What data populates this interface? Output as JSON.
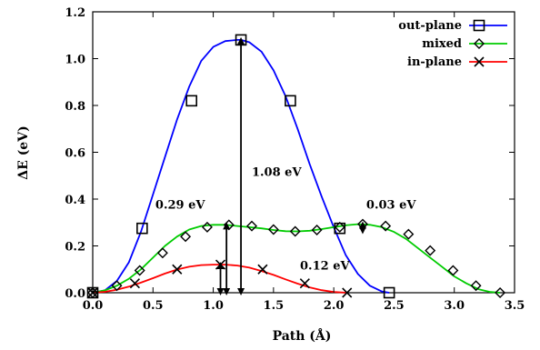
{
  "chart_data": {
    "type": "line",
    "xlabel": "Path (Å)",
    "ylabel": "ΔE (eV)",
    "xlim": [
      0.0,
      3.5
    ],
    "ylim": [
      0.0,
      1.2
    ],
    "xticks": [
      0.0,
      0.5,
      1.0,
      1.5,
      2.0,
      2.5,
      3.0,
      3.5
    ],
    "xtick_labels": [
      "0.0",
      "0.5",
      "1.0",
      "1.5",
      "2.0",
      "2.5",
      "3.0",
      "3.5"
    ],
    "yticks": [
      0.0,
      0.2,
      0.4,
      0.6,
      0.8,
      1.0,
      1.2
    ],
    "ytick_labels": [
      "0.0",
      "0.2",
      "0.4",
      "0.6",
      "0.8",
      "1.0",
      "1.2"
    ],
    "grid": false,
    "legend_position": "top-right",
    "series": [
      {
        "name": "out-plane",
        "color": "#0000ff",
        "marker": "square",
        "curve": {
          "x": [
            0.0,
            0.1,
            0.2,
            0.3,
            0.4,
            0.5,
            0.6,
            0.7,
            0.8,
            0.9,
            1.0,
            1.1,
            1.2,
            1.23,
            1.3,
            1.4,
            1.5,
            1.6,
            1.7,
            1.8,
            1.9,
            2.0,
            2.1,
            2.2,
            2.3,
            2.4,
            2.46
          ],
          "y": [
            0.0,
            0.01,
            0.05,
            0.13,
            0.26,
            0.42,
            0.58,
            0.74,
            0.88,
            0.99,
            1.05,
            1.075,
            1.08,
            1.08,
            1.07,
            1.03,
            0.95,
            0.84,
            0.7,
            0.55,
            0.41,
            0.28,
            0.16,
            0.08,
            0.03,
            0.005,
            0.0
          ]
        },
        "markers": {
          "x": [
            0.0,
            0.41,
            0.82,
            1.23,
            1.64,
            2.05,
            2.46
          ],
          "y": [
            0.0,
            0.275,
            0.82,
            1.08,
            0.82,
            0.275,
            0.0
          ]
        }
      },
      {
        "name": "mixed",
        "color": "#00cc00",
        "marker": "diamond",
        "curve": {
          "x": [
            0.0,
            0.1,
            0.2,
            0.3,
            0.4,
            0.5,
            0.6,
            0.7,
            0.8,
            0.9,
            1.0,
            1.1,
            1.2,
            1.3,
            1.4,
            1.5,
            1.6,
            1.7,
            1.8,
            1.9,
            2.0,
            2.1,
            2.2,
            2.3,
            2.4,
            2.5,
            2.6,
            2.7,
            2.8,
            2.9,
            3.0,
            3.1,
            3.2,
            3.3,
            3.38
          ],
          "y": [
            0.0,
            0.01,
            0.03,
            0.06,
            0.1,
            0.15,
            0.2,
            0.24,
            0.27,
            0.285,
            0.29,
            0.29,
            0.285,
            0.28,
            0.275,
            0.268,
            0.263,
            0.262,
            0.265,
            0.272,
            0.28,
            0.288,
            0.293,
            0.29,
            0.28,
            0.26,
            0.23,
            0.19,
            0.15,
            0.11,
            0.07,
            0.04,
            0.015,
            0.003,
            0.0
          ]
        },
        "markers": {
          "x": [
            0.0,
            0.2,
            0.39,
            0.58,
            0.77,
            0.95,
            1.13,
            1.32,
            1.5,
            1.68,
            1.86,
            2.05,
            2.24,
            2.43,
            2.62,
            2.8,
            2.99,
            3.18,
            3.38
          ],
          "y": [
            0.0,
            0.03,
            0.095,
            0.17,
            0.24,
            0.28,
            0.29,
            0.285,
            0.27,
            0.262,
            0.268,
            0.28,
            0.293,
            0.285,
            0.25,
            0.18,
            0.095,
            0.03,
            0.0
          ]
        }
      },
      {
        "name": "in-plane",
        "color": "#ff0000",
        "marker": "cross",
        "curve": {
          "x": [
            0.0,
            0.1,
            0.2,
            0.3,
            0.4,
            0.5,
            0.6,
            0.7,
            0.8,
            0.9,
            1.0,
            1.06,
            1.1,
            1.2,
            1.3,
            1.4,
            1.5,
            1.6,
            1.7,
            1.8,
            1.9,
            2.0,
            2.11
          ],
          "y": [
            0.0,
            0.004,
            0.013,
            0.026,
            0.043,
            0.062,
            0.082,
            0.099,
            0.111,
            0.118,
            0.12,
            0.12,
            0.12,
            0.116,
            0.107,
            0.093,
            0.076,
            0.057,
            0.039,
            0.023,
            0.011,
            0.003,
            0.0
          ]
        },
        "markers": {
          "x": [
            0.0,
            0.35,
            0.7,
            1.06,
            1.41,
            1.76,
            2.11
          ],
          "y": [
            0.0,
            0.04,
            0.1,
            0.12,
            0.1,
            0.04,
            0.0
          ]
        }
      }
    ],
    "annotations": [
      {
        "text": "1.08 eV",
        "x": 1.32,
        "y": 0.5,
        "arrow_x": 1.23,
        "arrow_y": [
          0.0,
          1.08
        ],
        "color": "#000000"
      },
      {
        "text": "0.29 eV",
        "x": 0.52,
        "y": 0.36,
        "arrow_x": 1.11,
        "arrow_y": [
          0.0,
          0.29
        ],
        "color": "#000000"
      },
      {
        "text": "0.12 eV",
        "x": 1.72,
        "y": 0.1,
        "arrow_x": 1.06,
        "arrow_y": [
          0.0,
          0.12
        ],
        "color": "#000000"
      },
      {
        "text": "0.03 eV",
        "x": 2.27,
        "y": 0.36,
        "arrow_x": 2.24,
        "arrow_y": [
          0.262,
          0.293
        ],
        "color": "#000000"
      }
    ]
  }
}
